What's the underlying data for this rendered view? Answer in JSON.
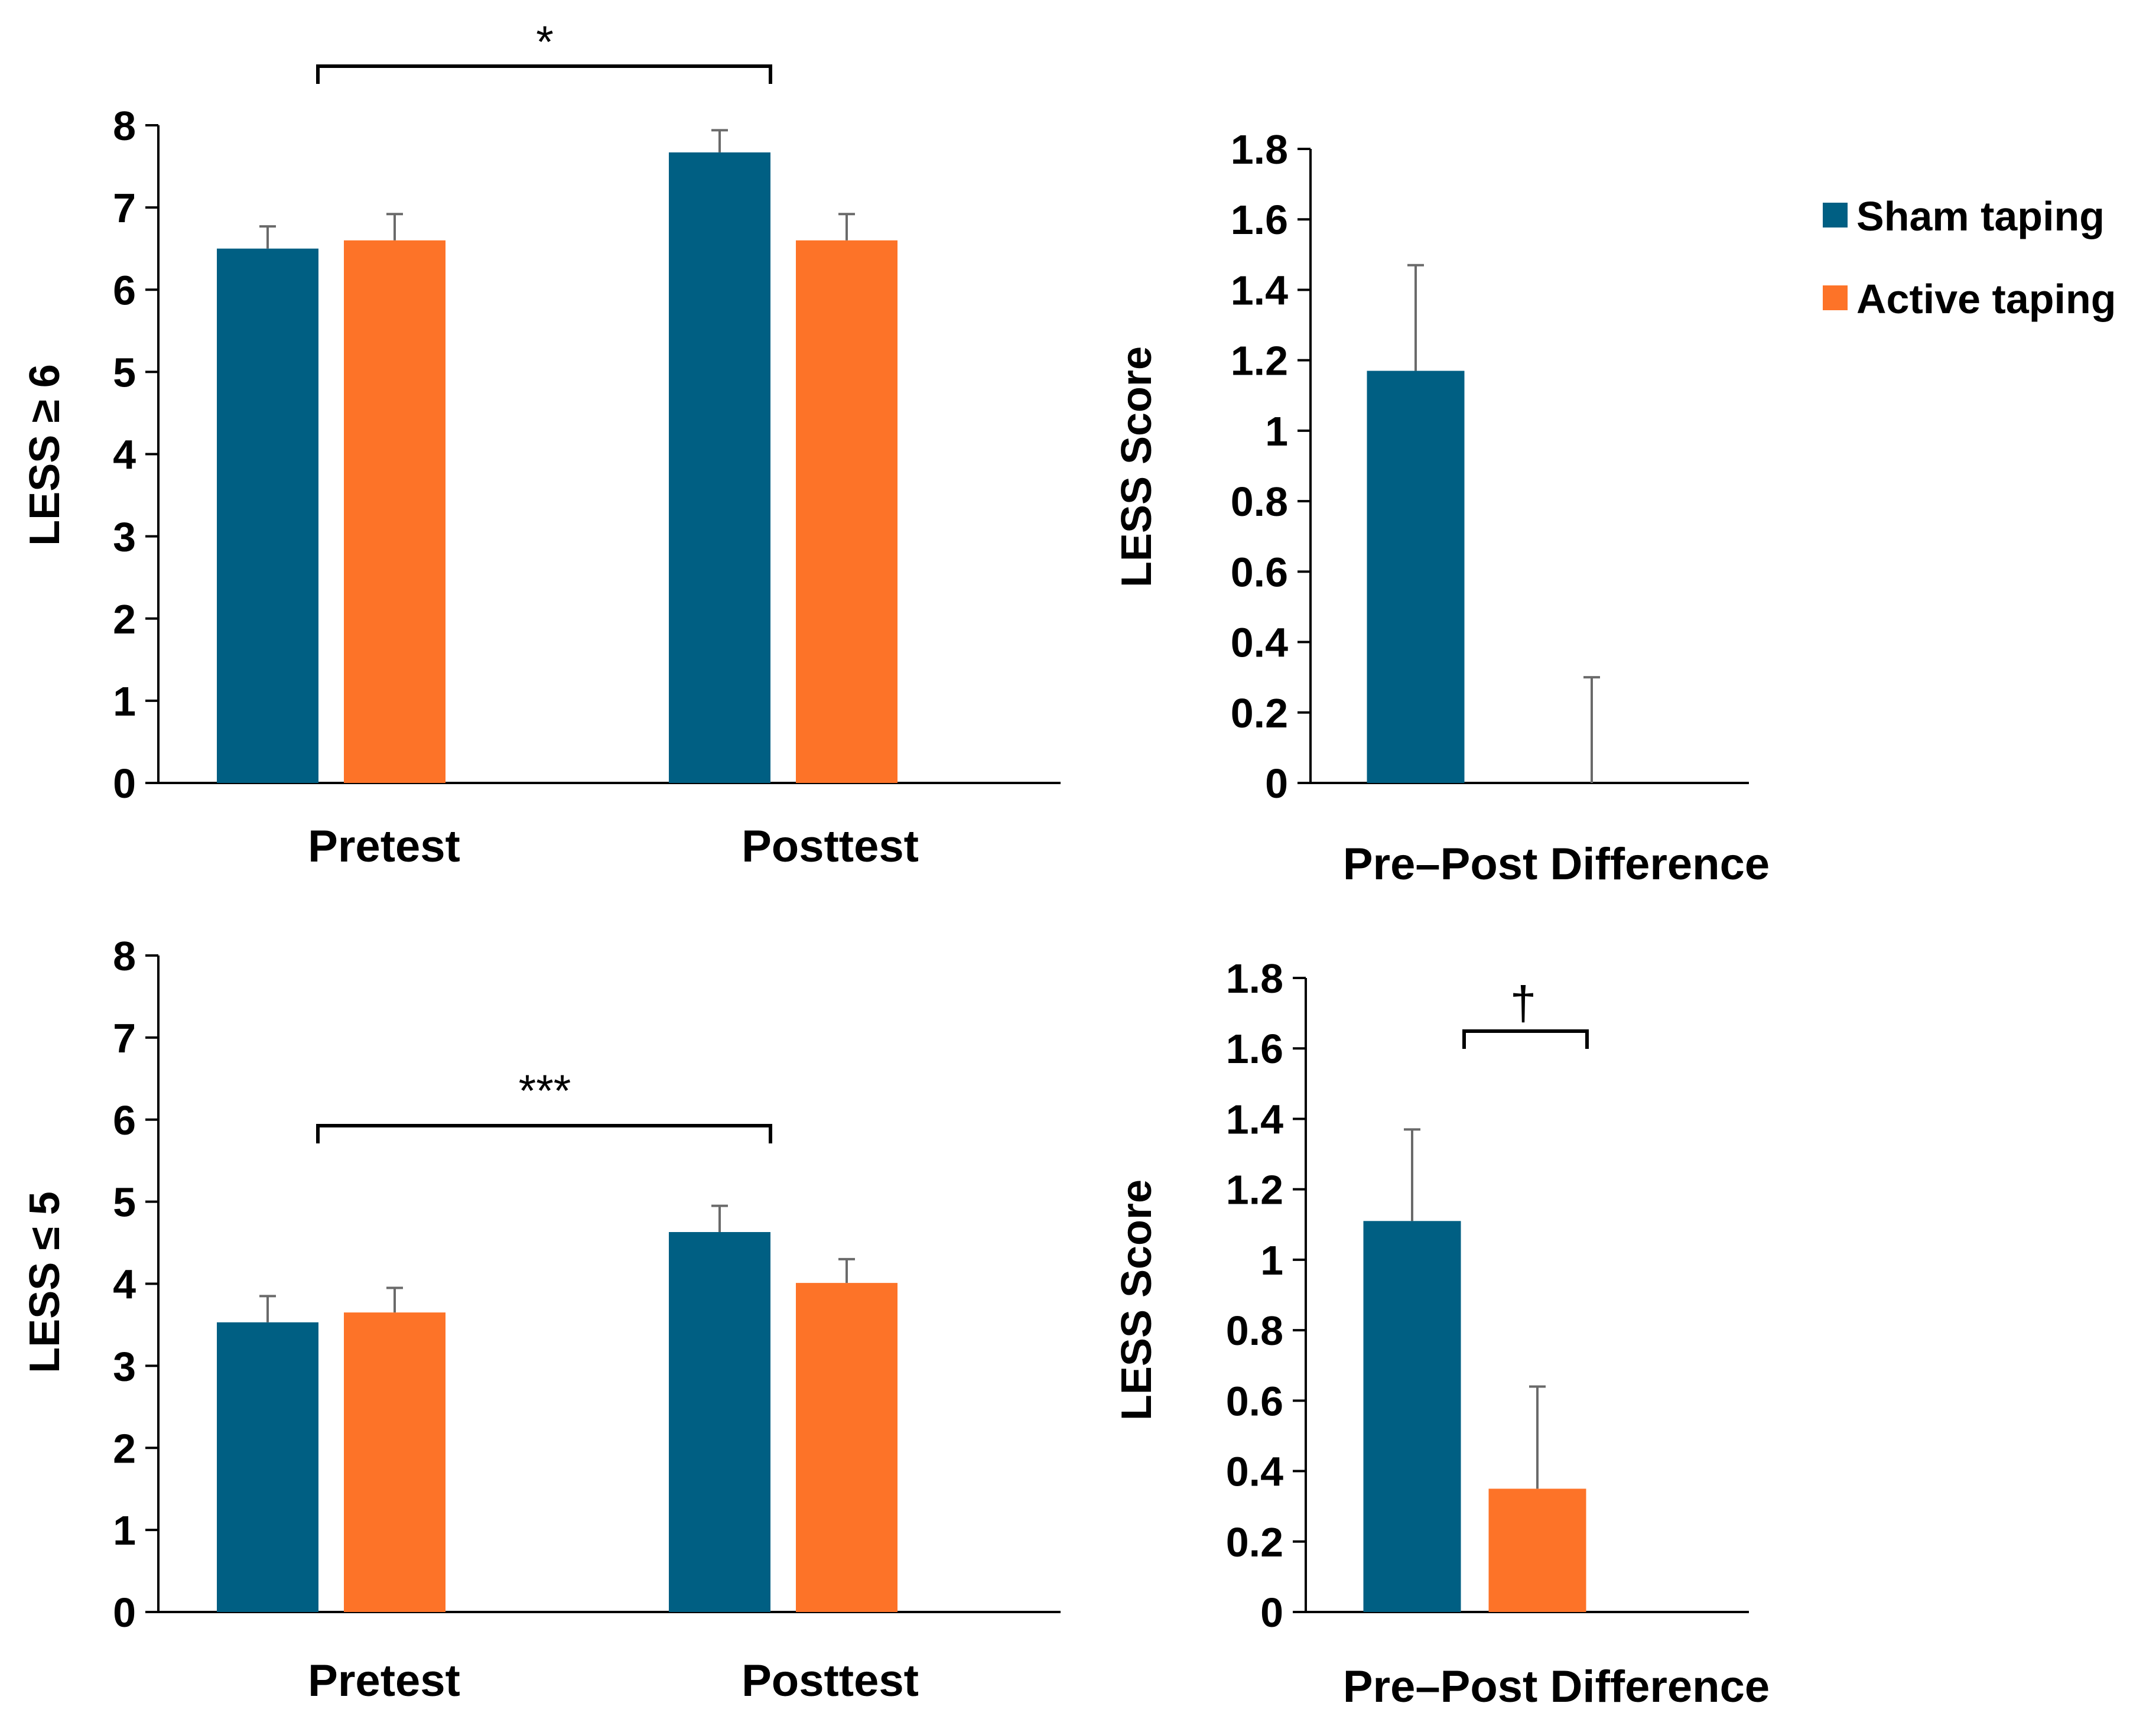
{
  "colors": {
    "sham": "#005f83",
    "active": "#fd7328"
  },
  "legend": [
    {
      "label": "Sham taping",
      "color": "#005f83"
    },
    {
      "label": "Active taping",
      "color": "#fd7328"
    }
  ],
  "chart_data": [
    {
      "type": "bar",
      "ylabel": "LESS ≥ 6",
      "categories": [
        "Pretest",
        "Posttest"
      ],
      "ylim": [
        0,
        8
      ],
      "yticks": [
        "0",
        "1",
        "2",
        "3",
        "4",
        "5",
        "6",
        "7",
        "8"
      ],
      "series": [
        {
          "name": "Sham taping",
          "values": [
            6.5,
            7.67
          ],
          "errors": [
            0.27,
            0.27
          ]
        },
        {
          "name": "Active taping",
          "values": [
            6.6,
            6.6
          ],
          "errors": [
            0.32,
            0.32
          ]
        }
      ],
      "annotation": {
        "text": "*",
        "from": "Pretest Sham taping",
        "to": "Posttest Sham taping"
      }
    },
    {
      "type": "bar",
      "ylabel": "LESS Score",
      "xlabel": "Pre–Post Difference",
      "ylim": [
        0,
        1.8
      ],
      "yticks": [
        "0",
        "0.2",
        "0.4",
        "0.6",
        "0.8",
        "1",
        "1.2",
        "1.4",
        "1.6",
        "1.8"
      ],
      "series": [
        {
          "name": "Sham taping",
          "values": [
            1.17
          ],
          "errors": [
            0.3
          ]
        },
        {
          "name": "Active taping",
          "values": [
            0
          ],
          "errors": [
            0.3
          ]
        }
      ]
    },
    {
      "type": "bar",
      "ylabel": "LESS ≤ 5",
      "categories": [
        "Pretest",
        "Posttest"
      ],
      "ylim": [
        0,
        8
      ],
      "yticks": [
        "0",
        "1",
        "2",
        "3",
        "4",
        "5",
        "6",
        "7",
        "8"
      ],
      "series": [
        {
          "name": "Sham taping",
          "values": [
            3.53,
            4.63
          ],
          "errors": [
            0.32,
            0.32
          ]
        },
        {
          "name": "Active taping",
          "values": [
            3.65,
            4.01
          ],
          "errors": [
            0.3,
            0.29
          ]
        }
      ],
      "annotation": {
        "text": "***",
        "from": "Pretest Sham taping",
        "to": "Posttest Sham taping"
      }
    },
    {
      "type": "bar",
      "ylabel": "LESS Score",
      "xlabel": "Pre–Post Difference",
      "ylim": [
        0,
        1.8
      ],
      "yticks": [
        "0",
        "0.2",
        "0.4",
        "0.6",
        "0.8",
        "1",
        "1.2",
        "1.4",
        "1.6",
        "1.8"
      ],
      "series": [
        {
          "name": "Sham taping",
          "values": [
            1.11
          ],
          "errors": [
            0.26
          ]
        },
        {
          "name": "Active taping",
          "values": [
            0.35
          ],
          "errors": [
            0.29
          ]
        }
      ],
      "annotation": {
        "text": "†",
        "from": "Sham taping",
        "to": "Active taping"
      }
    }
  ]
}
